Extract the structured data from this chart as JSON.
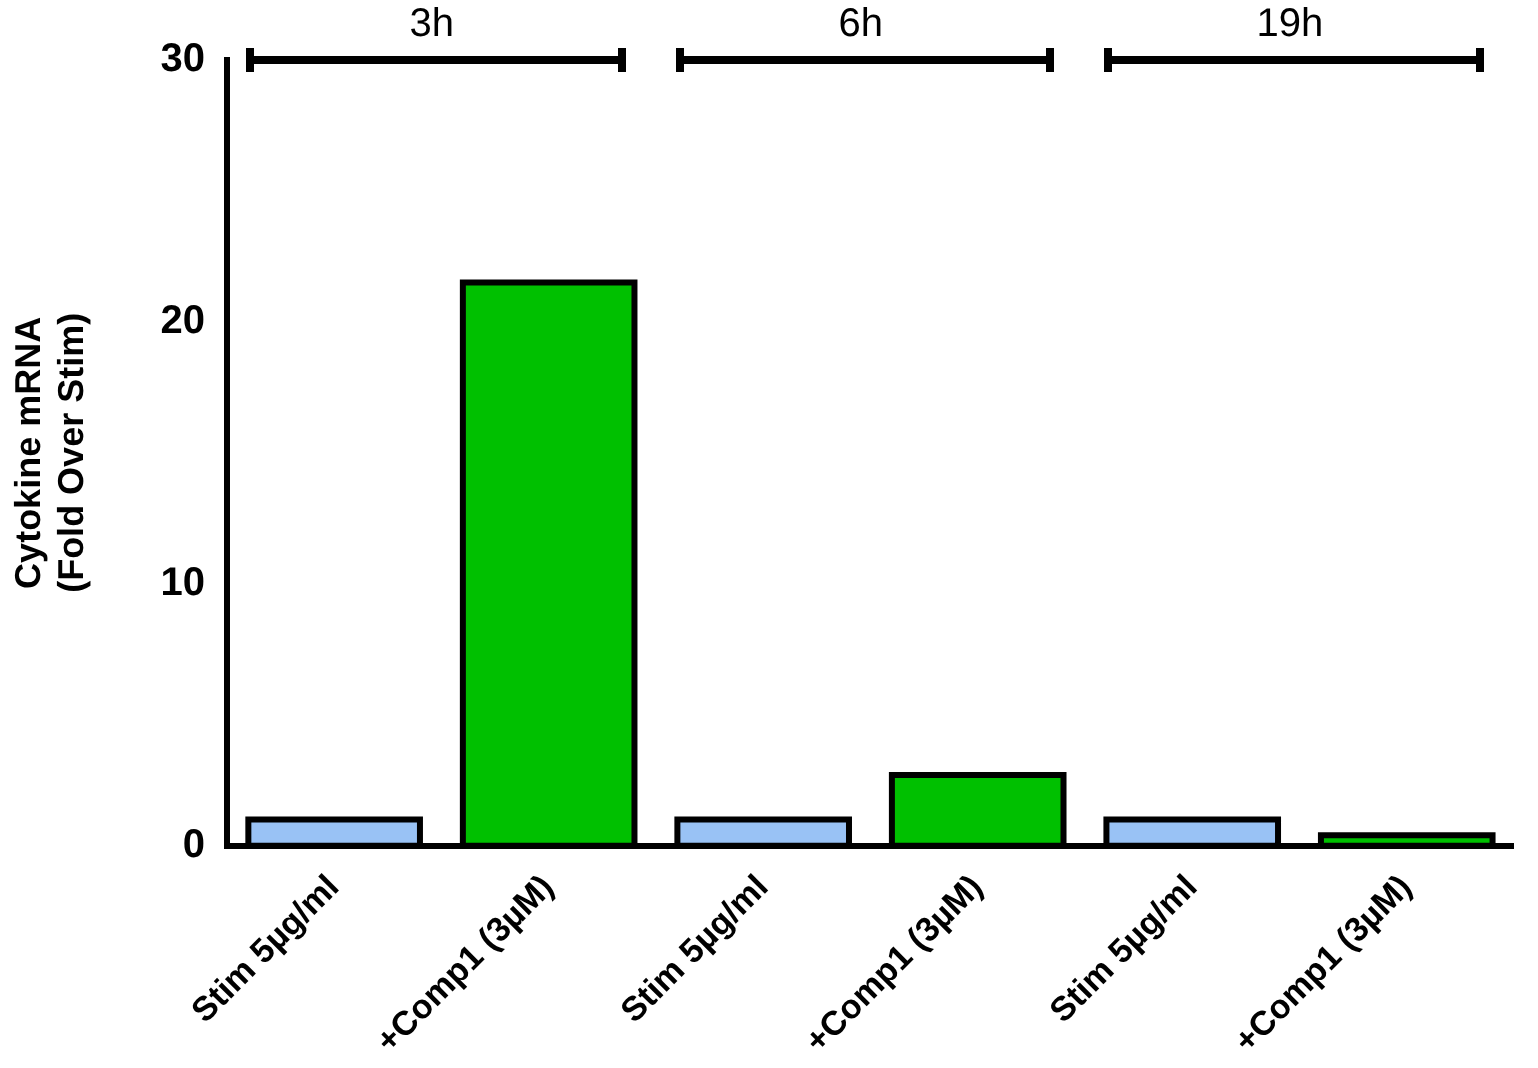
{
  "chart_data": {
    "type": "bar",
    "ylabel": "Cytokine mRNA\n(Fold Over Stim)",
    "categories": [
      "Stim 5µg/ml",
      "+Comp1 (3µM)",
      "Stim 5µg/ml",
      "+Comp1 (3µM)",
      "Stim 5µg/ml",
      "+Comp1 (3µM)"
    ],
    "values": [
      1,
      21.5,
      1,
      2.7,
      1,
      0.4
    ],
    "colors": [
      "#99c2f5",
      "#00c000",
      "#99c2f5",
      "#00c000",
      "#99c2f5",
      "#00c000"
    ],
    "ylim": [
      0,
      30
    ],
    "yticks": [
      0,
      10,
      20,
      30
    ],
    "grid": false,
    "legend": false,
    "annotations": [
      "3h",
      "6h",
      "19h"
    ]
  }
}
